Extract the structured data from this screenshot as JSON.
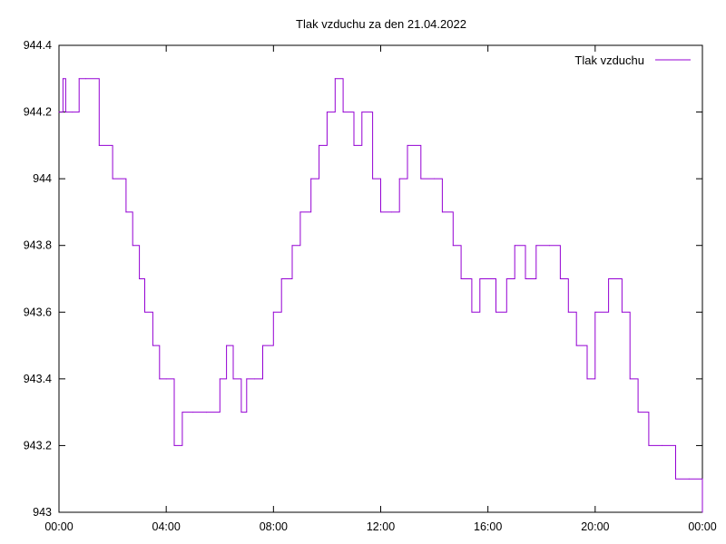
{
  "chart_data": {
    "type": "line",
    "title": "Tlak vzduchu za den 21.04.2022",
    "xlabel": "",
    "ylabel": "",
    "x_ticks": [
      "00:00",
      "04:00",
      "08:00",
      "12:00",
      "16:00",
      "20:00",
      "00:00"
    ],
    "y_ticks": [
      "943",
      "943.2",
      "943.4",
      "943.6",
      "943.8",
      "944",
      "944.2",
      "944.4"
    ],
    "ylim": [
      943.0,
      944.4
    ],
    "xlim_hours": [
      0,
      24
    ],
    "grid": false,
    "legend_position": "top-right",
    "series": [
      {
        "name": "Tlak vzduchu",
        "color": "#9400d3",
        "x": [
          0.0,
          0.15,
          0.25,
          0.5,
          0.75,
          1.0,
          1.5,
          2.0,
          2.5,
          2.75,
          3.0,
          3.2,
          3.5,
          3.75,
          4.0,
          4.3,
          4.6,
          5.0,
          5.5,
          6.0,
          6.25,
          6.5,
          6.8,
          7.0,
          7.3,
          7.6,
          8.0,
          8.3,
          8.7,
          9.0,
          9.4,
          9.7,
          10.0,
          10.3,
          10.6,
          11.0,
          11.3,
          11.7,
          12.0,
          12.4,
          12.7,
          13.0,
          13.5,
          14.0,
          14.3,
          14.7,
          15.0,
          15.4,
          15.7,
          16.0,
          16.3,
          16.7,
          17.0,
          17.4,
          17.8,
          18.3,
          18.7,
          19.0,
          19.3,
          19.7,
          20.0,
          20.5,
          21.0,
          21.3,
          21.6,
          22.0,
          22.5,
          23.0,
          23.5,
          24.0
        ],
        "y": [
          944.2,
          944.3,
          944.2,
          944.2,
          944.3,
          944.3,
          944.1,
          944.0,
          943.9,
          943.8,
          943.7,
          943.6,
          943.5,
          943.4,
          943.4,
          943.2,
          943.3,
          943.3,
          943.3,
          943.4,
          943.5,
          943.4,
          943.3,
          943.4,
          943.4,
          943.5,
          943.6,
          943.7,
          943.8,
          943.9,
          944.0,
          944.1,
          944.2,
          944.3,
          944.2,
          944.1,
          944.2,
          944.0,
          943.9,
          943.9,
          944.0,
          944.1,
          944.0,
          944.0,
          943.9,
          943.8,
          943.7,
          943.6,
          943.7,
          943.7,
          943.6,
          943.7,
          943.8,
          943.7,
          943.8,
          943.8,
          943.7,
          943.6,
          943.5,
          943.4,
          943.6,
          943.7,
          943.6,
          943.4,
          943.3,
          943.2,
          943.2,
          943.1,
          943.1,
          943.0
        ]
      }
    ]
  }
}
